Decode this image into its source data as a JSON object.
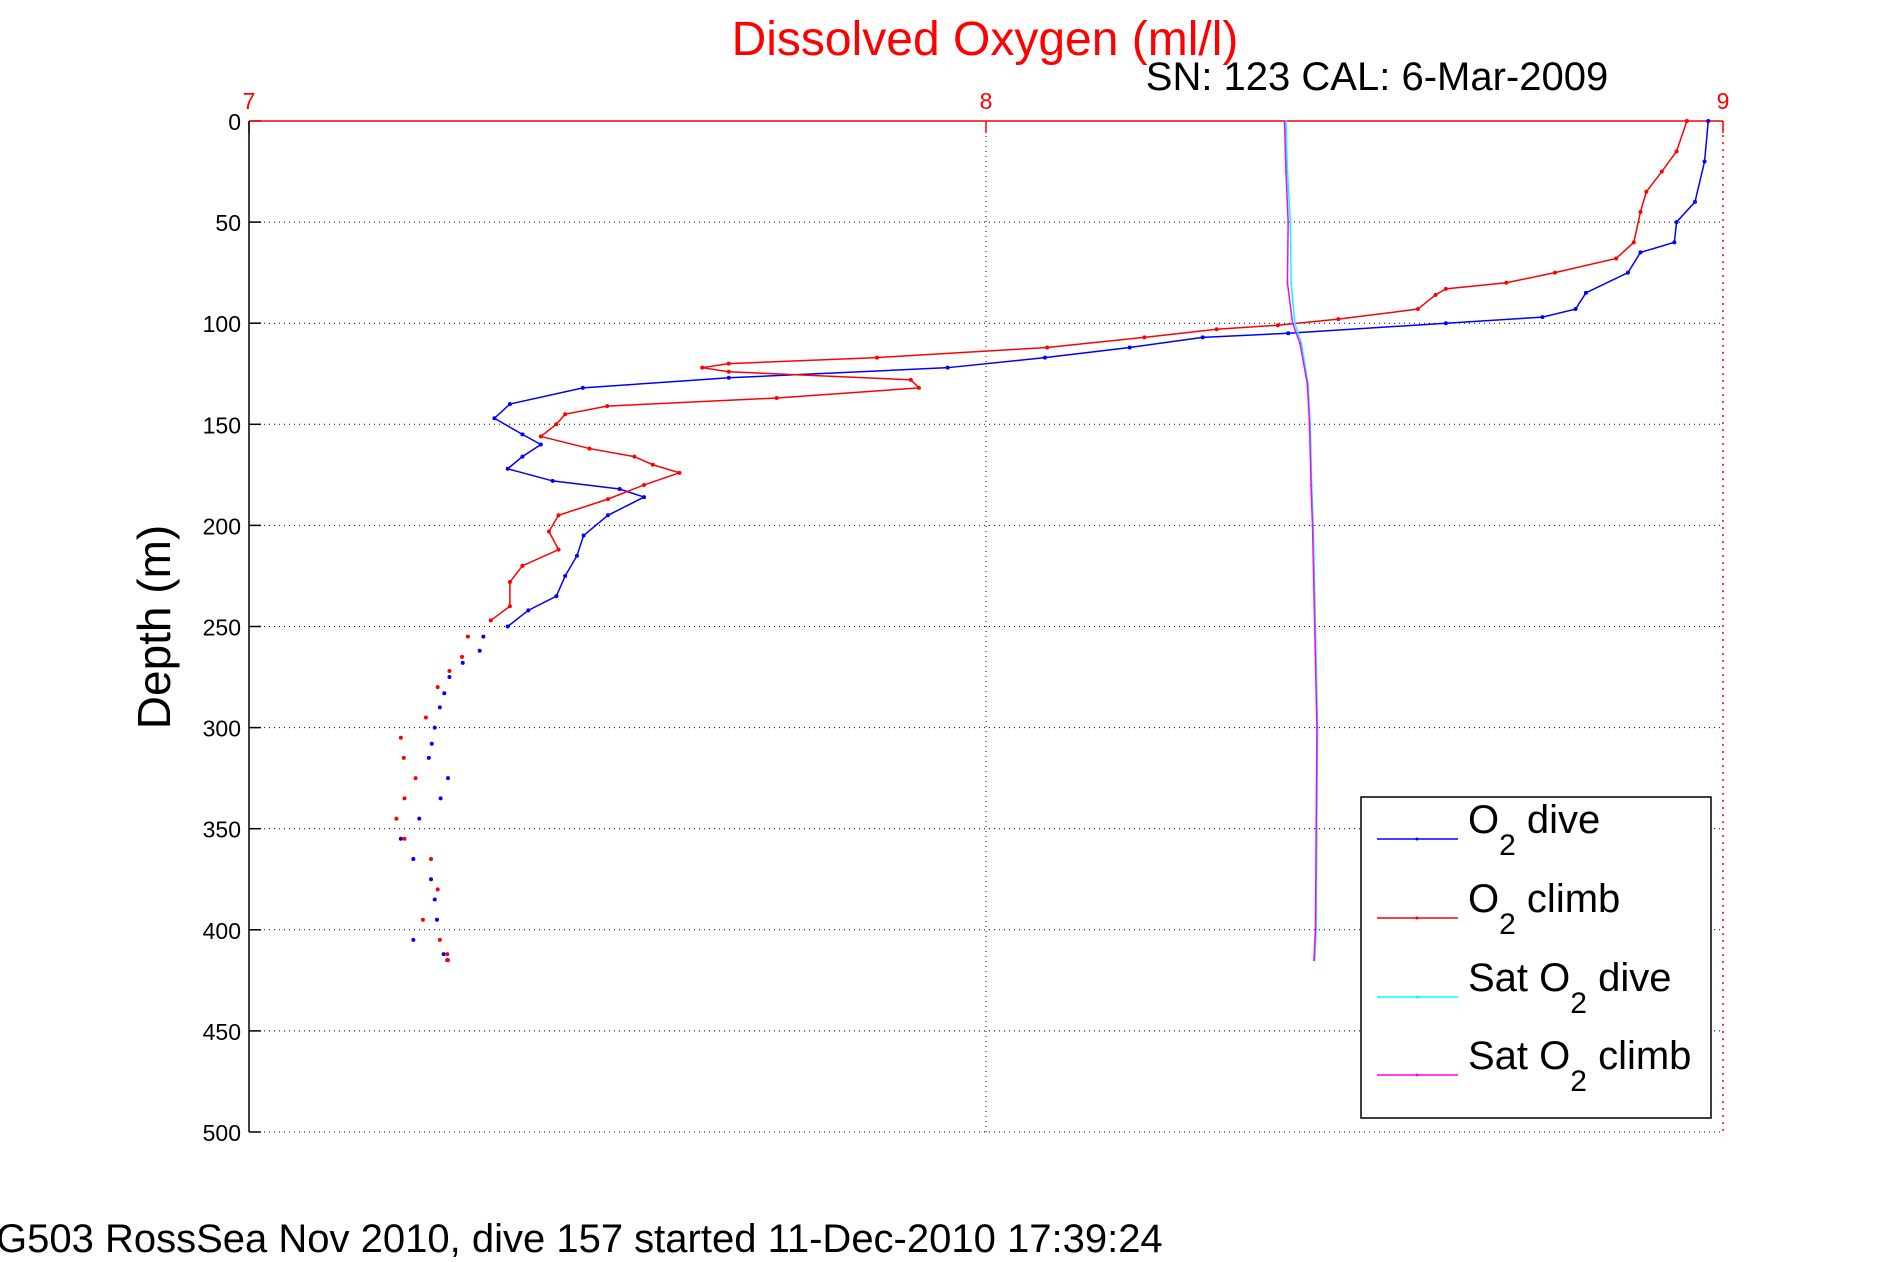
{
  "chart_data": {
    "type": "line",
    "title": "Dissolved Oxygen (ml/l)",
    "subtitle": "SN: 123  CAL: 6-Mar-2009",
    "footer": "G503 RossSea Nov 2010, dive 157 started 11-Dec-2010 17:39:24",
    "xlabel": "",
    "ylabel": "Depth (m)",
    "xlim": [
      7,
      9
    ],
    "ylim": [
      0,
      500
    ],
    "y_reversed": true,
    "x_axis_location": "top",
    "xticks": [
      "7",
      "8",
      "9"
    ],
    "yticks": [
      "0",
      "50",
      "100",
      "150",
      "200",
      "250",
      "300",
      "350",
      "400",
      "450",
      "500"
    ],
    "grid": true,
    "legend_position": "bottom-right",
    "colors": {
      "title": "#ff0000",
      "xaxis": "#ff0000"
    },
    "series": [
      {
        "name": "O2 dive",
        "label_pre": "O",
        "label_sub": "2",
        "label_post": " dive",
        "color": "#0000ff",
        "marker": "v",
        "points": [
          [
            8.98,
            0
          ],
          [
            8.975,
            20
          ],
          [
            8.962,
            40
          ],
          [
            8.937,
            50
          ],
          [
            8.934,
            60
          ],
          [
            8.888,
            65
          ],
          [
            8.871,
            75
          ],
          [
            8.814,
            85
          ],
          [
            8.8,
            93
          ],
          [
            8.755,
            97
          ],
          [
            8.624,
            100
          ],
          [
            8.41,
            105
          ],
          [
            8.294,
            107
          ],
          [
            8.195,
            112
          ],
          [
            8.08,
            117
          ],
          [
            7.948,
            122
          ],
          [
            7.651,
            127
          ],
          [
            7.453,
            132
          ],
          [
            7.354,
            140
          ],
          [
            7.333,
            147
          ],
          [
            7.371,
            155
          ],
          [
            7.396,
            160
          ],
          [
            7.371,
            166
          ],
          [
            7.351,
            172
          ],
          [
            7.412,
            178
          ],
          [
            7.503,
            182
          ],
          [
            7.536,
            186
          ],
          [
            7.487,
            195
          ],
          [
            7.454,
            205
          ],
          [
            7.445,
            215
          ],
          [
            7.429,
            225
          ],
          [
            7.417,
            235
          ],
          [
            7.379,
            242
          ],
          [
            7.351,
            250
          ],
          [
            7.318,
            255
          ],
          [
            7.313,
            262
          ],
          [
            7.29,
            268
          ],
          [
            7.272,
            275
          ],
          [
            7.265,
            283
          ],
          [
            7.259,
            290
          ],
          [
            7.252,
            300
          ],
          [
            7.248,
            308
          ],
          [
            7.244,
            315
          ],
          [
            7.27,
            325
          ],
          [
            7.26,
            335
          ],
          [
            7.231,
            345
          ],
          [
            7.206,
            355
          ],
          [
            7.223,
            365
          ],
          [
            7.247,
            375
          ],
          [
            7.252,
            385
          ],
          [
            7.255,
            395
          ],
          [
            7.223,
            405
          ],
          [
            7.264,
            412
          ],
          [
            7.269,
            415
          ]
        ]
      },
      {
        "name": "O2 climb",
        "label_pre": "O",
        "label_sub": "2",
        "label_post": " climb",
        "color": "#ff0000",
        "marker": "^",
        "points": [
          [
            8.951,
            0
          ],
          [
            8.937,
            15
          ],
          [
            8.917,
            25
          ],
          [
            8.896,
            35
          ],
          [
            8.888,
            45
          ],
          [
            8.879,
            60
          ],
          [
            8.855,
            68
          ],
          [
            8.772,
            75
          ],
          [
            8.706,
            80
          ],
          [
            8.624,
            83
          ],
          [
            8.61,
            86
          ],
          [
            8.586,
            93
          ],
          [
            8.478,
            98
          ],
          [
            8.396,
            101
          ],
          [
            8.313,
            103
          ],
          [
            8.215,
            107
          ],
          [
            8.083,
            112
          ],
          [
            7.852,
            117
          ],
          [
            7.651,
            120
          ],
          [
            7.615,
            122
          ],
          [
            7.651,
            124
          ],
          [
            7.898,
            128
          ],
          [
            7.909,
            132
          ],
          [
            7.716,
            137
          ],
          [
            7.486,
            141
          ],
          [
            7.429,
            145
          ],
          [
            7.417,
            150
          ],
          [
            7.396,
            156
          ],
          [
            7.462,
            162
          ],
          [
            7.523,
            166
          ],
          [
            7.548,
            170
          ],
          [
            7.584,
            174
          ],
          [
            7.536,
            180
          ],
          [
            7.487,
            187
          ],
          [
            7.42,
            195
          ],
          [
            7.407,
            203
          ],
          [
            7.42,
            212
          ],
          [
            7.371,
            220
          ],
          [
            7.354,
            228
          ],
          [
            7.354,
            240
          ],
          [
            7.328,
            247
          ],
          [
            7.297,
            255
          ],
          [
            7.289,
            265
          ],
          [
            7.272,
            272
          ],
          [
            7.256,
            280
          ],
          [
            7.24,
            295
          ],
          [
            7.206,
            305
          ],
          [
            7.21,
            315
          ],
          [
            7.226,
            325
          ],
          [
            7.211,
            335
          ],
          [
            7.2,
            345
          ],
          [
            7.211,
            355
          ],
          [
            7.247,
            365
          ],
          [
            7.256,
            380
          ],
          [
            7.236,
            395
          ],
          [
            7.259,
            405
          ],
          [
            7.269,
            412
          ],
          [
            7.27,
            415
          ]
        ]
      },
      {
        "name": "Sat O2 dive",
        "label_pre": "Sat O",
        "label_sub": "2",
        "label_post": " dive",
        "color": "#00ffff",
        "marker": ".",
        "points": [
          [
            8.407,
            0
          ],
          [
            8.409,
            25
          ],
          [
            8.413,
            50
          ],
          [
            8.414,
            80
          ],
          [
            8.419,
            100
          ],
          [
            8.428,
            110
          ],
          [
            8.437,
            130
          ],
          [
            8.44,
            150
          ],
          [
            8.442,
            180
          ],
          [
            8.444,
            200
          ],
          [
            8.447,
            250
          ],
          [
            8.45,
            300
          ],
          [
            8.449,
            350
          ],
          [
            8.448,
            400
          ],
          [
            8.446,
            415
          ]
        ]
      },
      {
        "name": "Sat O2 climb",
        "label_pre": "Sat O",
        "label_sub": "2",
        "label_post": " climb",
        "color": "#ff00ff",
        "marker": ".",
        "points": [
          [
            8.405,
            0
          ],
          [
            8.407,
            25
          ],
          [
            8.41,
            50
          ],
          [
            8.409,
            80
          ],
          [
            8.416,
            100
          ],
          [
            8.426,
            110
          ],
          [
            8.436,
            130
          ],
          [
            8.439,
            150
          ],
          [
            8.441,
            180
          ],
          [
            8.443,
            200
          ],
          [
            8.446,
            250
          ],
          [
            8.449,
            300
          ],
          [
            8.448,
            350
          ],
          [
            8.447,
            400
          ],
          [
            8.445,
            415
          ]
        ]
      }
    ]
  }
}
